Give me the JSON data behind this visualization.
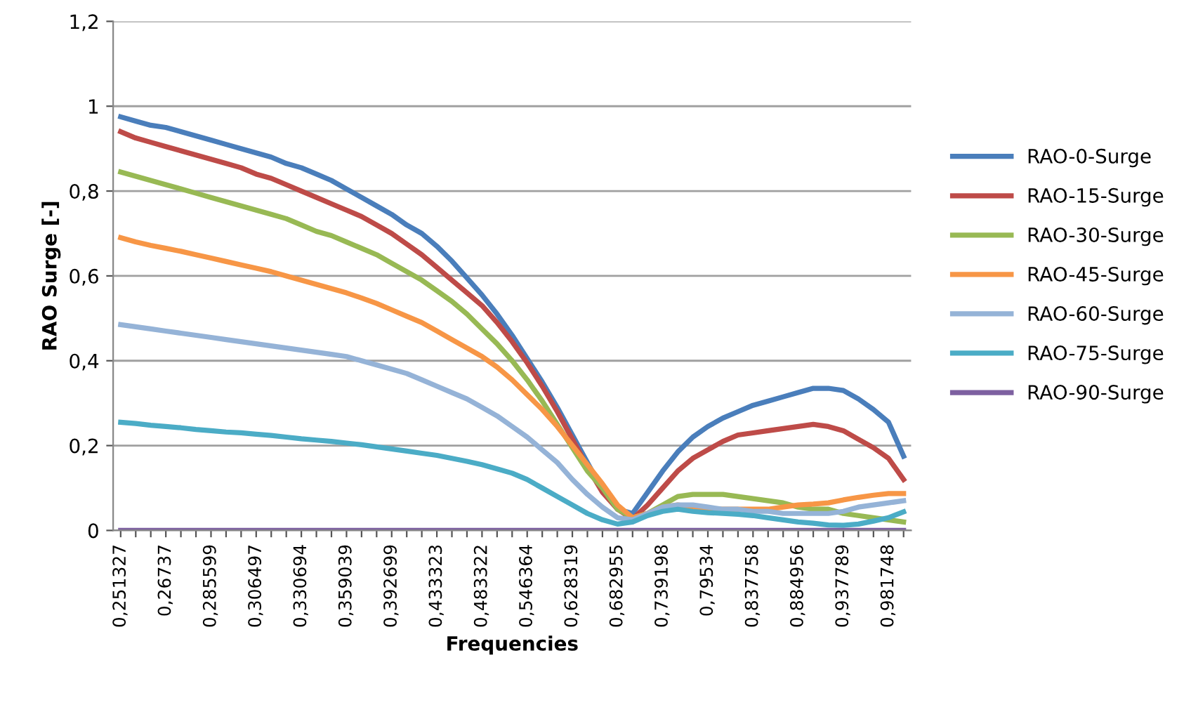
{
  "chart_data": {
    "type": "line",
    "xlabel": "Frequencies",
    "ylabel": "RAO Surge [-]",
    "categories": [
      "0,251327",
      null,
      null,
      "0,26737",
      null,
      null,
      "0,285599",
      null,
      null,
      "0,306497",
      null,
      null,
      "0,330694",
      null,
      null,
      "0,359039",
      null,
      null,
      "0,392699",
      null,
      null,
      "0,433323",
      null,
      null,
      "0,483322",
      null,
      null,
      "0,546364",
      null,
      null,
      "0,628319",
      null,
      null,
      "0,682955",
      null,
      null,
      "0,739198",
      null,
      null,
      "0,79534",
      null,
      null,
      "0,837758",
      null,
      null,
      "0,884956",
      null,
      null,
      "0,937789",
      null,
      null,
      "0,981748",
      null
    ],
    "series": [
      {
        "name": "RAO-0-Surge",
        "color": "#4a7ebb",
        "values": [
          0.975,
          0.965,
          0.955,
          0.95,
          0.94,
          0.93,
          0.92,
          0.91,
          0.9,
          0.89,
          0.88,
          0.865,
          0.855,
          0.84,
          0.825,
          0.805,
          0.785,
          0.765,
          0.745,
          0.72,
          0.7,
          0.67,
          0.635,
          0.595,
          0.555,
          0.51,
          0.46,
          0.405,
          0.35,
          0.29,
          0.225,
          0.16,
          0.095,
          0.05,
          0.04,
          0.09,
          0.14,
          0.185,
          0.22,
          0.245,
          0.265,
          0.28,
          0.295,
          0.305,
          0.315,
          0.325,
          0.335,
          0.335,
          0.33,
          0.31,
          0.285,
          0.255,
          0.175
        ]
      },
      {
        "name": "RAO-15-Surge",
        "color": "#be4b48",
        "values": [
          0.94,
          0.925,
          0.915,
          0.905,
          0.895,
          0.885,
          0.875,
          0.865,
          0.855,
          0.84,
          0.83,
          0.815,
          0.8,
          0.785,
          0.77,
          0.755,
          0.74,
          0.72,
          0.7,
          0.675,
          0.65,
          0.62,
          0.59,
          0.56,
          0.53,
          0.49,
          0.445,
          0.395,
          0.34,
          0.28,
          0.215,
          0.15,
          0.09,
          0.05,
          0.027,
          0.06,
          0.1,
          0.14,
          0.17,
          0.19,
          0.21,
          0.225,
          0.23,
          0.235,
          0.24,
          0.245,
          0.25,
          0.245,
          0.235,
          0.215,
          0.195,
          0.17,
          0.12
        ]
      },
      {
        "name": "RAO-30-Surge",
        "color": "#98b954",
        "values": [
          0.845,
          0.835,
          0.825,
          0.815,
          0.805,
          0.795,
          0.785,
          0.775,
          0.765,
          0.755,
          0.745,
          0.735,
          0.72,
          0.705,
          0.695,
          0.68,
          0.665,
          0.65,
          0.63,
          0.61,
          0.59,
          0.565,
          0.54,
          0.51,
          0.475,
          0.44,
          0.4,
          0.355,
          0.305,
          0.25,
          0.195,
          0.14,
          0.1,
          0.05,
          0.03,
          0.04,
          0.06,
          0.08,
          0.085,
          0.085,
          0.085,
          0.08,
          0.075,
          0.07,
          0.065,
          0.055,
          0.05,
          0.05,
          0.04,
          0.035,
          0.03,
          0.025,
          0.02
        ]
      },
      {
        "name": "RAO-45-Surge",
        "color": "#f79646",
        "values": [
          0.69,
          0.68,
          0.672,
          0.665,
          0.658,
          0.65,
          0.642,
          0.634,
          0.626,
          0.618,
          0.61,
          0.6,
          0.59,
          0.58,
          0.57,
          0.56,
          0.548,
          0.535,
          0.52,
          0.505,
          0.49,
          0.47,
          0.45,
          0.43,
          0.41,
          0.385,
          0.355,
          0.32,
          0.285,
          0.245,
          0.2,
          0.155,
          0.11,
          0.06,
          0.03,
          0.04,
          0.055,
          0.06,
          0.055,
          0.05,
          0.05,
          0.05,
          0.05,
          0.05,
          0.055,
          0.06,
          0.062,
          0.065,
          0.072,
          0.078,
          0.083,
          0.087,
          0.087
        ]
      },
      {
        "name": "RAO-60-Surge",
        "color": "#95b3d7",
        "values": [
          0.485,
          0.48,
          0.475,
          0.47,
          0.465,
          0.46,
          0.455,
          0.45,
          0.445,
          0.44,
          0.435,
          0.43,
          0.425,
          0.42,
          0.415,
          0.41,
          0.4,
          0.39,
          0.38,
          0.37,
          0.355,
          0.34,
          0.325,
          0.31,
          0.29,
          0.27,
          0.245,
          0.22,
          0.19,
          0.16,
          0.12,
          0.085,
          0.055,
          0.03,
          0.025,
          0.04,
          0.055,
          0.06,
          0.06,
          0.055,
          0.05,
          0.05,
          0.045,
          0.045,
          0.04,
          0.04,
          0.04,
          0.04,
          0.045,
          0.055,
          0.06,
          0.065,
          0.07
        ]
      },
      {
        "name": "RAO-75-Surge",
        "color": "#4bacc6",
        "values": [
          0.255,
          0.252,
          0.248,
          0.245,
          0.242,
          0.238,
          0.235,
          0.232,
          0.23,
          0.227,
          0.224,
          0.22,
          0.216,
          0.213,
          0.21,
          0.206,
          0.202,
          0.197,
          0.192,
          0.187,
          0.182,
          0.177,
          0.17,
          0.163,
          0.155,
          0.145,
          0.135,
          0.12,
          0.1,
          0.08,
          0.06,
          0.04,
          0.025,
          0.015,
          0.02,
          0.035,
          0.045,
          0.05,
          0.045,
          0.042,
          0.04,
          0.038,
          0.035,
          0.03,
          0.025,
          0.02,
          0.017,
          0.013,
          0.012,
          0.015,
          0.022,
          0.03,
          0.044
        ]
      },
      {
        "name": "RAO-90-Surge",
        "color": "#7d60a0",
        "values": [
          0,
          0,
          0,
          0,
          0,
          0,
          0,
          0,
          0,
          0,
          0,
          0,
          0,
          0,
          0,
          0,
          0,
          0,
          0,
          0,
          0,
          0,
          0,
          0,
          0,
          0,
          0,
          0,
          0,
          0,
          0,
          0,
          0,
          0,
          0,
          0,
          0,
          0,
          0,
          0,
          0,
          0,
          0,
          0,
          0,
          0,
          0,
          0,
          0,
          0,
          0,
          0,
          0
        ]
      }
    ],
    "ylim": [
      0,
      1.2
    ],
    "yticks": [
      0,
      {
        "value": 0.2,
        "label": "0,2"
      },
      {
        "value": 0.4,
        "label": "0,4"
      },
      {
        "value": 0.6,
        "label": "0,6"
      },
      {
        "value": 0.8,
        "label": "0,8"
      },
      1,
      {
        "value": 1.2,
        "label": "1,2"
      }
    ],
    "grid": "y",
    "legend": "right",
    "marker": "none",
    "line_style": "solid"
  }
}
